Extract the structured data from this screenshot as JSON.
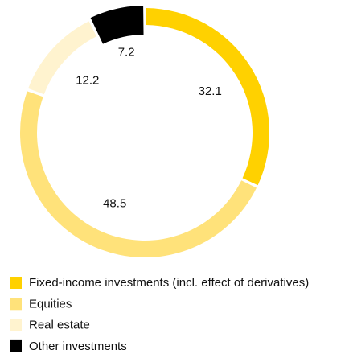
{
  "chart_data": {
    "type": "donut",
    "categories": [
      "Fixed-income investments (incl. effect of derivatives)",
      "Equities",
      "Real estate",
      "Other investments"
    ],
    "values": [
      32.1,
      48.5,
      12.2,
      7.2
    ],
    "colors": [
      "#ffd100",
      "#ffe27a",
      "#fff3cf",
      "#000000"
    ],
    "legend": "bottom"
  }
}
